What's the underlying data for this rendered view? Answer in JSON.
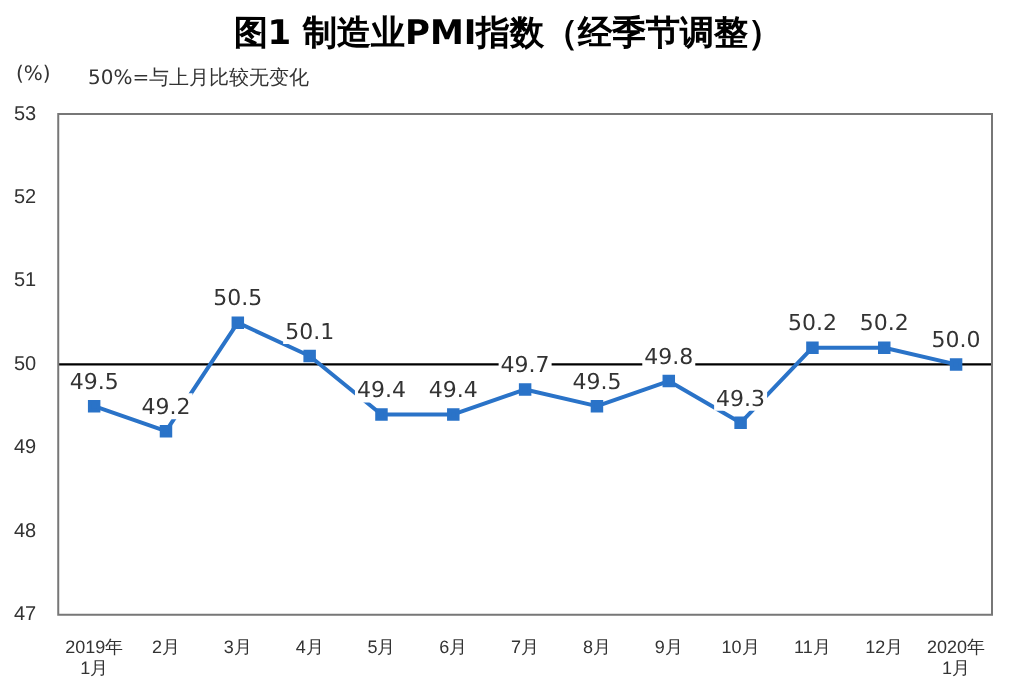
{
  "chart_data": {
    "type": "line",
    "title": "图1  制造业PMI指数（经季节调整）",
    "ylabel": "(%)",
    "annotations": [
      "50%=与上月比较无变化"
    ],
    "categories": [
      "2019年\n1月",
      "2月",
      "3月",
      "4月",
      "5月",
      "6月",
      "7月",
      "8月",
      "9月",
      "10月",
      "11月",
      "12月",
      "2020年\n1月"
    ],
    "series": [
      {
        "color": "#2a73c8",
        "values": [
          49.5,
          49.2,
          50.5,
          50.1,
          49.4,
          49.4,
          49.7,
          49.5,
          49.8,
          49.3,
          50.2,
          50.2,
          50.0
        ],
        "value_labels": [
          "49.5",
          "49.2",
          "50.5",
          "50.1",
          "49.4",
          "49.4",
          "49.7",
          "49.5",
          "49.8",
          "49.3",
          "50.2",
          "50.2",
          "50.0"
        ]
      }
    ],
    "ylim": [
      47,
      53
    ],
    "yticks": [
      47,
      48,
      49,
      50,
      51,
      52,
      53
    ],
    "ref_lines": [
      {
        "axis": "y",
        "value": 50,
        "color": "#000000"
      }
    ],
    "grid": false,
    "legend": false,
    "marker": "square",
    "line_style": "solid"
  }
}
